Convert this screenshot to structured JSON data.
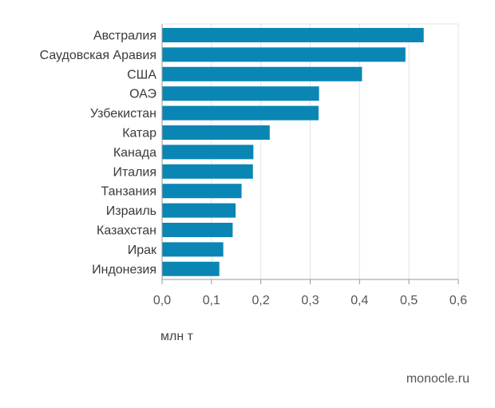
{
  "chart_data": {
    "type": "bar",
    "orientation": "horizontal",
    "categories": [
      "Австралия",
      "Саудовская Аравия",
      "США",
      "ОАЭ",
      "Узбекистан",
      "Катар",
      "Канада",
      "Италия",
      "Танзания",
      "Израиль",
      "Казахстан",
      "Ирак",
      "Индонезия"
    ],
    "values": [
      0.53,
      0.493,
      0.405,
      0.318,
      0.317,
      0.218,
      0.185,
      0.184,
      0.161,
      0.149,
      0.143,
      0.124,
      0.116
    ],
    "xlim": [
      0,
      0.6
    ],
    "xticks": [
      "0,0",
      "0,1",
      "0,2",
      "0,3",
      "0,4",
      "0,5",
      "0,6"
    ],
    "xlabel": "млн т",
    "ylabel": "",
    "title": "",
    "grid": true,
    "legend": "none",
    "colors": {
      "bar": "#0a86b5",
      "grid": "#e3e3e3",
      "axis": "#999999"
    }
  },
  "source": "monocle.ru"
}
